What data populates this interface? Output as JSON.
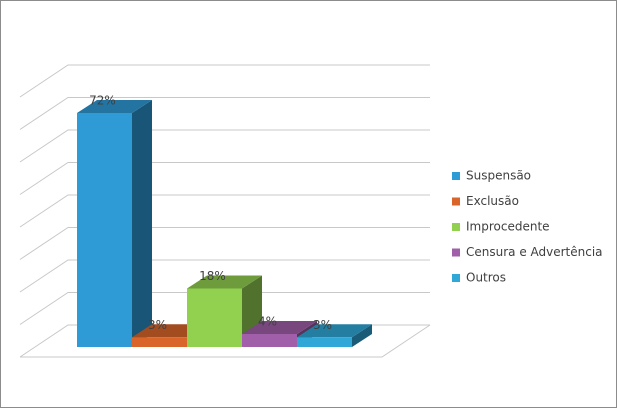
{
  "chart_data": {
    "type": "bar3d",
    "categories": [
      "Suspensão",
      "Exclusão",
      "Improcedente",
      "Censura e Advertência",
      "Outros"
    ],
    "values": [
      72,
      3,
      18,
      4,
      3
    ],
    "value_labels": [
      "72%",
      "3%",
      "18%",
      "4%",
      "3%"
    ],
    "colors": [
      "#2e9bd6",
      "#d9652b",
      "#92d050",
      "#a05fa8",
      "#2fa8d8"
    ],
    "ylim": [
      0,
      80
    ],
    "yticks": [
      0,
      10,
      20,
      30,
      40,
      50,
      60,
      70,
      80
    ],
    "grid": true,
    "legend": "right"
  }
}
